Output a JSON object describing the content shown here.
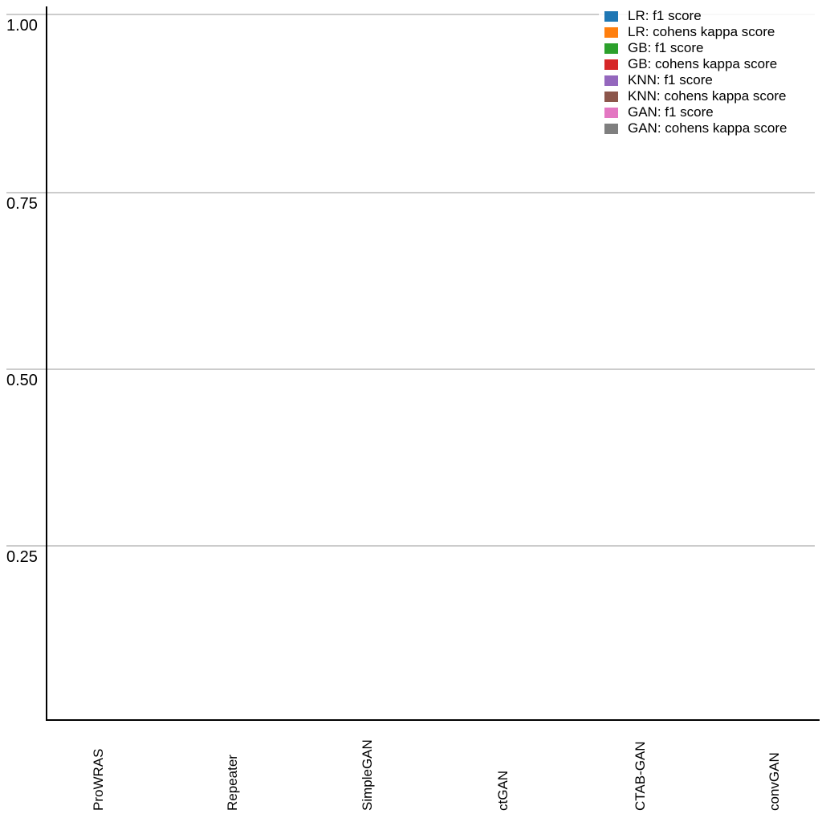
{
  "chart_data": {
    "type": "bar",
    "title": "",
    "xlabel": "",
    "ylabel": "",
    "categories": [
      "ProWRAS",
      "Repeater",
      "SimpleGAN",
      "ctGAN",
      "CTAB-GAN",
      "convGAN"
    ],
    "series": [
      {
        "name": "LR: f1 score",
        "color": "#1f77b4",
        "values": []
      },
      {
        "name": "LR: cohens kappa score",
        "color": "#ff7f0e",
        "values": []
      },
      {
        "name": "GB: f1 score",
        "color": "#2ca02c",
        "values": []
      },
      {
        "name": "GB: cohens kappa score",
        "color": "#d62728",
        "values": []
      },
      {
        "name": "KNN: f1 score",
        "color": "#9467bd",
        "values": []
      },
      {
        "name": "KNN: cohens kappa score",
        "color": "#8c564b",
        "values": []
      },
      {
        "name": "GAN: f1 score",
        "color": "#e377c2",
        "values": []
      },
      {
        "name": "GAN: cohens kappa score",
        "color": "#7f7f7f",
        "values": []
      }
    ],
    "bars_visible": false,
    "ylim": [
      0,
      1.02
    ],
    "ytick_labels": [
      "1.00",
      "0.75",
      "0.50",
      "0.25"
    ],
    "ytick_values": [
      1.0,
      0.75,
      0.5,
      0.25
    ],
    "grid": true,
    "gridline_color": "#cccccc",
    "axis_color": "#000000",
    "legend_position": "upper-right"
  }
}
